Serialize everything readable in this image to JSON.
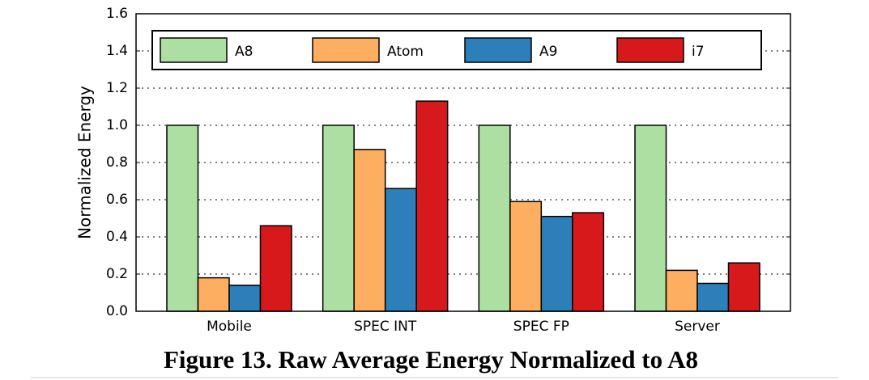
{
  "chart_data": {
    "type": "bar",
    "caption": "Figure 13. Raw Average Energy Normalized to A8",
    "y_label": "Normalized Energy",
    "categories": [
      "Mobile",
      "SPEC INT",
      "SPEC FP",
      "Server"
    ],
    "series": [
      {
        "name": "A8",
        "color": "#addfa2",
        "values": [
          1.0,
          1.0,
          1.0,
          1.0
        ]
      },
      {
        "name": "Atom",
        "color": "#fdae61",
        "values": [
          0.18,
          0.87,
          0.59,
          0.22
        ]
      },
      {
        "name": "A9",
        "color": "#2c7fb8",
        "values": [
          0.14,
          0.66,
          0.51,
          0.15
        ]
      },
      {
        "name": "i7",
        "color": "#d7191c",
        "values": [
          0.46,
          1.13,
          0.53,
          0.26
        ]
      }
    ],
    "ylim": [
      0,
      1.6
    ],
    "yticks": [
      {
        "value": 0,
        "label": "0.0"
      },
      0.2,
      0.4,
      0.6,
      0.8,
      {
        "value": 1,
        "label": "1.0"
      },
      1.2,
      1.4,
      1.6
    ],
    "grid": true,
    "legend": "top"
  }
}
